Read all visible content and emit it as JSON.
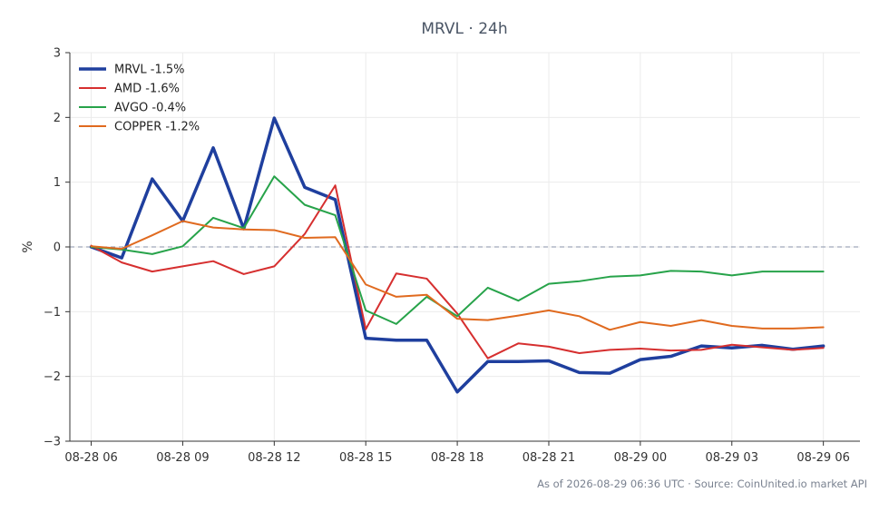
{
  "chart_data": {
    "type": "line",
    "title": "MRVL · 24h",
    "xlabel": "",
    "ylabel": "%",
    "ylim": [
      -3,
      3
    ],
    "yticks": [
      -3,
      -2,
      -1,
      0,
      1,
      2,
      3
    ],
    "ytick_labels": [
      "−3",
      "−2",
      "−1",
      "0",
      "1",
      "2",
      "3"
    ],
    "xlim": [
      -0.7,
      25.2
    ],
    "xticks": [
      0,
      3,
      6,
      9,
      12,
      15,
      18,
      21,
      24
    ],
    "xtick_labels": [
      "08-28 06",
      "08-28 09",
      "08-28 12",
      "08-28 15",
      "08-28 18",
      "08-28 21",
      "08-29 00",
      "08-29 03",
      "08-29 06"
    ],
    "grid": true,
    "zero_line": true,
    "legend_position": "top-left",
    "x": [
      0,
      1,
      2,
      3,
      4,
      5,
      6,
      7,
      8,
      9,
      10,
      11,
      12,
      13,
      14,
      15,
      16,
      17,
      18,
      19,
      20,
      21,
      22,
      23,
      24
    ],
    "series": [
      {
        "name": "MRVL -1.5%",
        "color": "#1f3f9e",
        "width": 3.5,
        "values": [
          0.0,
          -0.17,
          1.05,
          0.4,
          1.53,
          0.28,
          1.99,
          0.92,
          0.73,
          -1.41,
          -1.44,
          -1.44,
          -2.24,
          -1.77,
          -1.77,
          -1.76,
          -1.94,
          -1.95,
          -1.74,
          -1.69,
          -1.53,
          -1.56,
          -1.52,
          -1.58,
          -1.53
        ]
      },
      {
        "name": "AMD -1.6%",
        "color": "#d62f2f",
        "width": 2,
        "values": [
          0.02,
          -0.24,
          -0.38,
          -0.3,
          -0.22,
          -0.42,
          -0.3,
          0.2,
          0.95,
          -1.27,
          -0.41,
          -0.49,
          -1.03,
          -1.72,
          -1.49,
          -1.54,
          -1.64,
          -1.59,
          -1.57,
          -1.6,
          -1.59,
          -1.51,
          -1.55,
          -1.59,
          -1.56
        ]
      },
      {
        "name": "AVGO -0.4%",
        "color": "#27a34a",
        "width": 2,
        "values": [
          0.0,
          -0.04,
          -0.11,
          0.01,
          0.45,
          0.29,
          1.09,
          0.65,
          0.49,
          -0.98,
          -1.19,
          -0.77,
          -1.07,
          -0.63,
          -0.83,
          -0.57,
          -0.53,
          -0.46,
          -0.44,
          -0.37,
          -0.38,
          -0.44,
          -0.38,
          -0.38,
          -0.38
        ]
      },
      {
        "name": "COPPER -1.2%",
        "color": "#e06a1f",
        "width": 2,
        "values": [
          0.01,
          -0.03,
          0.18,
          0.4,
          0.3,
          0.27,
          0.26,
          0.14,
          0.15,
          -0.58,
          -0.77,
          -0.74,
          -1.11,
          -1.13,
          -1.06,
          -0.98,
          -1.07,
          -1.28,
          -1.16,
          -1.22,
          -1.13,
          -1.22,
          -1.26,
          -1.26,
          -1.24
        ]
      }
    ]
  },
  "footer": "As of 2026-08-29 06:36 UTC · Source: CoinUnited.io market API"
}
